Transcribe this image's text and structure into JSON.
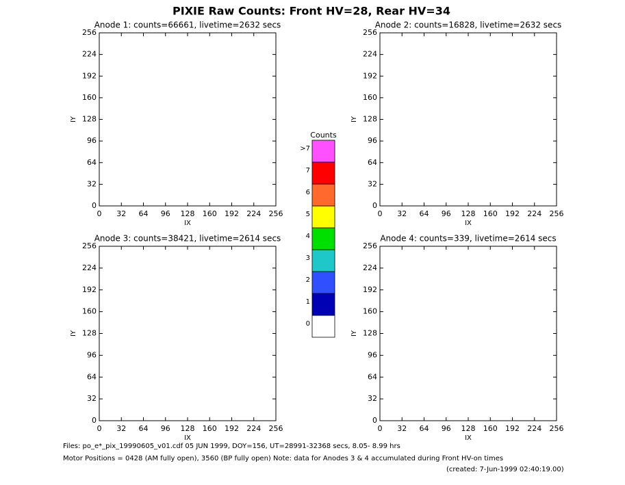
{
  "title": "PIXIE Raw Counts:  Front HV=28, Rear HV=34",
  "footer": [
    "Files: po_e*_pix_19990605_v01.cdf    05 JUN 1999, DOY=156, UT=28991-32368 secs,  8.05- 8.99 hrs",
    "Motor Positions = 0428 (AM fully open), 3560 (BP fully open)    Note: data for Anodes 3 & 4 accumulated during Front HV-on times",
    "(created:  7-Jun-1999 02:40:19.00)"
  ],
  "chart_data": [
    {
      "type": "heatmap",
      "title": "Anode 1: counts=66661, livetime=2632 secs",
      "xlabel": "IX",
      "ylabel": "IY",
      "xlim": [
        0,
        256
      ],
      "ylim": [
        0,
        256
      ],
      "xticks": [
        0,
        32,
        64,
        96,
        128,
        160,
        192,
        224,
        256
      ],
      "yticks": [
        0,
        32,
        64,
        96,
        128,
        160,
        192,
        224,
        256
      ]
    },
    {
      "type": "heatmap",
      "title": "Anode 2: counts=16828, livetime=2632 secs",
      "xlabel": "IX",
      "ylabel": "IY",
      "xlim": [
        0,
        256
      ],
      "ylim": [
        0,
        256
      ],
      "xticks": [
        0,
        32,
        64,
        96,
        128,
        160,
        192,
        224,
        256
      ],
      "yticks": [
        0,
        32,
        64,
        96,
        128,
        160,
        192,
        224,
        256
      ]
    },
    {
      "type": "heatmap",
      "title": "Anode 3: counts=38421, livetime=2614 secs",
      "xlabel": "IX",
      "ylabel": "IY",
      "xlim": [
        0,
        256
      ],
      "ylim": [
        0,
        256
      ],
      "xticks": [
        0,
        32,
        64,
        96,
        128,
        160,
        192,
        224,
        256
      ],
      "yticks": [
        0,
        32,
        64,
        96,
        128,
        160,
        192,
        224,
        256
      ]
    },
    {
      "type": "heatmap",
      "title": "Anode 4: counts=339, livetime=2614 secs",
      "xlabel": "IX",
      "ylabel": "IY",
      "xlim": [
        0,
        256
      ],
      "ylim": [
        0,
        256
      ],
      "xticks": [
        0,
        32,
        64,
        96,
        128,
        160,
        192,
        224,
        256
      ],
      "yticks": [
        0,
        32,
        64,
        96,
        128,
        160,
        192,
        224,
        256
      ]
    },
    {
      "type": "colorbar",
      "title": "Counts",
      "categories": [
        "0",
        "1",
        "2",
        "3",
        "4",
        "5",
        "6",
        "7",
        ">7"
      ],
      "colors": [
        "#ffffff",
        "#0000b4",
        "#3050ff",
        "#1ec8c8",
        "#00e000",
        "#ffff00",
        "#ff6a2c",
        "#ff0000",
        "#ff50ff"
      ]
    }
  ]
}
